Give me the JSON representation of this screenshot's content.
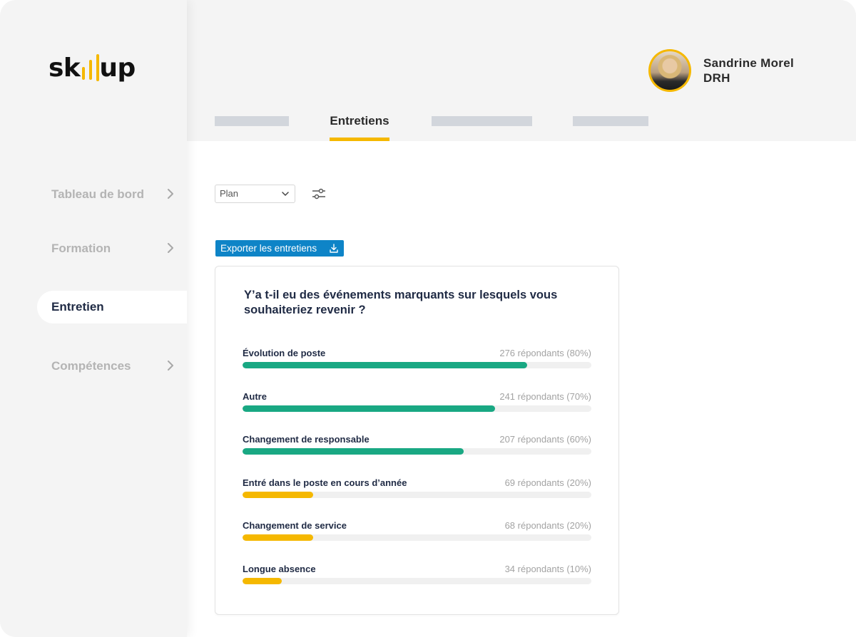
{
  "app": {
    "logo_text": "skillup"
  },
  "colors": {
    "accent_yellow": "#f5b800",
    "bar_green": "#19a883",
    "bar_yellow": "#f5b800",
    "export_blue": "#0e84c7"
  },
  "sidebar": {
    "items": [
      {
        "label": "Tableau de bord",
        "active": false,
        "has_chevron": true
      },
      {
        "label": "Formation",
        "active": false,
        "has_chevron": true
      },
      {
        "label": "Entretien",
        "active": true,
        "has_chevron": false
      },
      {
        "label": "Compétences",
        "active": false,
        "has_chevron": true
      }
    ]
  },
  "header": {
    "user": {
      "name": "Sandrine Morel",
      "role": "DRH"
    },
    "tabs": {
      "active_label": "Entretiens"
    }
  },
  "filters": {
    "plan_select": {
      "value": "Plan",
      "icon": "chevron-down-icon"
    },
    "filter_icon": "sliders-icon"
  },
  "export": {
    "label": "Exporter les entretiens",
    "icon": "download-icon"
  },
  "card": {
    "question": "Y’a t-il eu des événements marquants sur lesquels vous souhaiteriez revenir ?",
    "answers": [
      {
        "label": "Évolution de poste",
        "count": "276 répondants (80%)",
        "fill": 0.815,
        "color": "green"
      },
      {
        "label": "Autre",
        "count": "241 répondants (70%)",
        "fill": 0.723,
        "color": "green"
      },
      {
        "label": "Changement de responsable",
        "count": "207 répondants (60%)",
        "fill": 0.633,
        "color": "green"
      },
      {
        "label": "Entré dans le poste en cours d’année",
        "count": "69 répondants (20%)",
        "fill": 0.202,
        "color": "yellow"
      },
      {
        "label": "Changement de service",
        "count": "68 répondants (20%)",
        "fill": 0.202,
        "color": "yellow"
      },
      {
        "label": "Longue absence",
        "count": "34 répondants (10%)",
        "fill": 0.112,
        "color": "yellow"
      }
    ]
  }
}
